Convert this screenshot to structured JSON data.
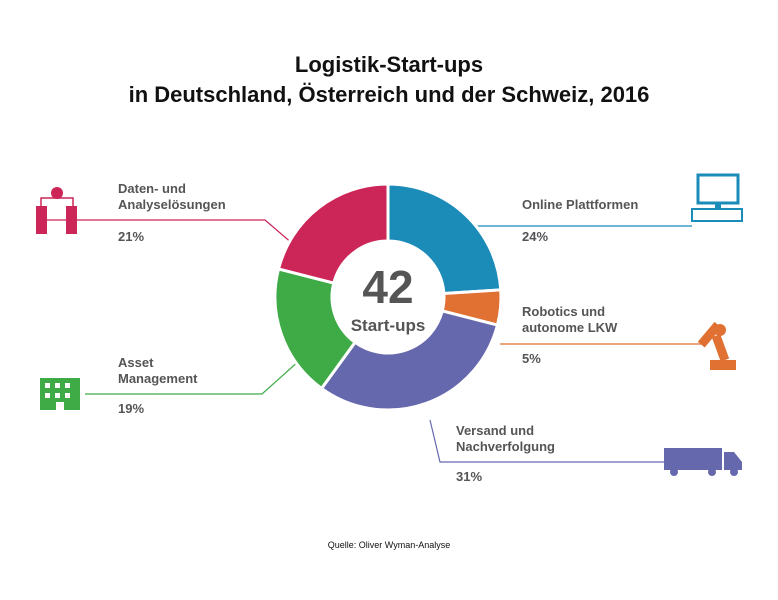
{
  "chart_data": {
    "type": "donut",
    "title": [
      "Logistik-Start-ups",
      "in Deutschland, Österreich und der Schweiz, 2016"
    ],
    "center_value": 42,
    "center_label": "Start-ups",
    "categories": [
      "Online Plattformen",
      "Robotics und\nautonome LKW",
      "Versand und\nNachverfolgung",
      "Asset\nManagement",
      "Daten- und\nAnalyselösungen"
    ],
    "values": [
      24,
      5,
      31,
      19,
      21
    ],
    "value_labels": [
      "24%",
      "5%",
      "31%",
      "19%",
      "21%"
    ],
    "colors": [
      "#1b8bb8",
      "#e07132",
      "#6668ad",
      "#3fab47",
      "#cc2558"
    ],
    "source": "Quelle: Oliver Wyman-Analyse"
  }
}
